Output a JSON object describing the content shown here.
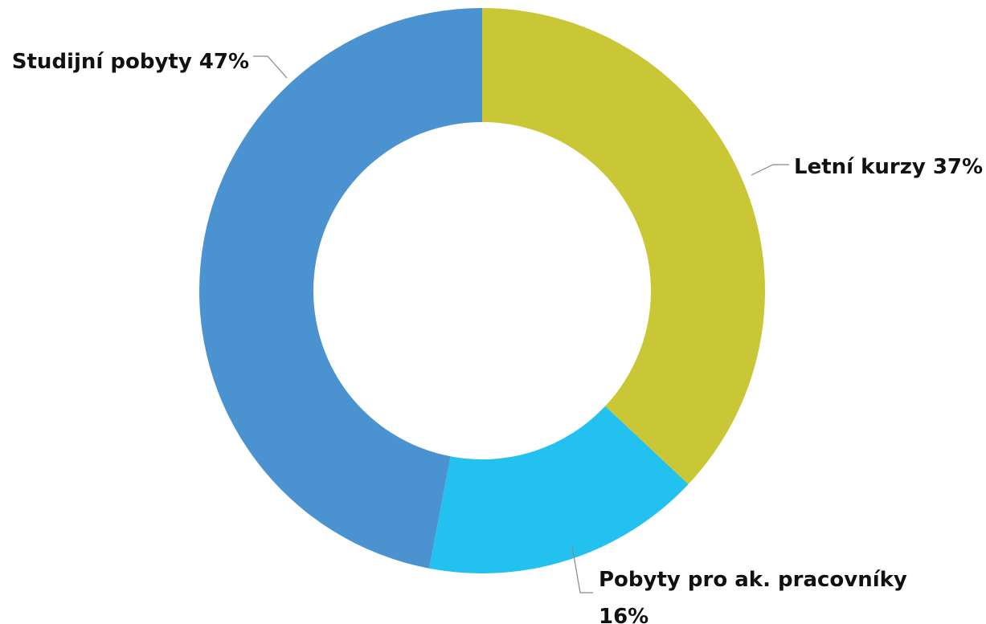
{
  "chart_data": {
    "type": "donut",
    "categories": [
      "Letní kurzy",
      "Pobyty pro ak. pracovníky",
      "Studijní pobyty"
    ],
    "values": [
      37,
      16,
      47
    ],
    "value_labels": [
      "37%",
      "16%",
      "47%"
    ],
    "colors": [
      "#c9c735",
      "#22c1f0",
      "#4a93d0"
    ]
  }
}
